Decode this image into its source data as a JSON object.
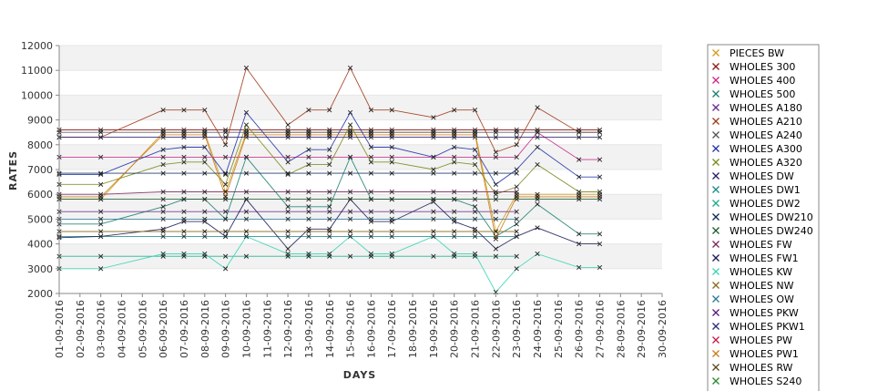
{
  "chart_data": {
    "type": "line",
    "xlabel": "DAYS",
    "ylabel": "RATES",
    "ylim": [
      2000,
      12000
    ],
    "yticks": [
      2000,
      3000,
      4000,
      5000,
      6000,
      7000,
      8000,
      9000,
      10000,
      11000,
      12000
    ],
    "grid": "alternating horizontal bands",
    "legend_position": "right",
    "x": [
      "01-09-2016",
      "02-09-2016",
      "03-09-2016",
      "04-09-2016",
      "05-09-2016",
      "06-09-2016",
      "07-09-2016",
      "08-09-2016",
      "09-09-2016",
      "10-09-2016",
      "11-09-2016",
      "12-09-2016",
      "13-09-2016",
      "14-09-2016",
      "15-09-2016",
      "16-09-2016",
      "17-09-2016",
      "18-09-2016",
      "19-09-2016",
      "20-09-2016",
      "21-09-2016",
      "22-09-2016",
      "23-09-2016",
      "24-09-2016",
      "25-09-2016",
      "26-09-2016",
      "27-09-2016",
      "28-09-2016",
      "29-09-2016",
      "30-09-2016"
    ],
    "series": [
      {
        "name": "PIECES BW",
        "color": "#d49a1c",
        "values": [
          5800,
          null,
          5800,
          null,
          null,
          8500,
          8500,
          8500,
          6100,
          8500,
          null,
          8500,
          8500,
          8500,
          8500,
          8500,
          8500,
          null,
          8500,
          8500,
          8500,
          4500,
          6000,
          6000,
          null,
          6000,
          6000,
          null,
          null,
          null
        ]
      },
      {
        "name": "WHOLES 300",
        "color": "#8b1a1a",
        "values": [
          8600,
          null,
          8600,
          null,
          null,
          8600,
          8600,
          8600,
          8600,
          8600,
          null,
          8600,
          8600,
          8600,
          8600,
          8600,
          8600,
          null,
          8600,
          8600,
          8600,
          8600,
          8600,
          8600,
          null,
          8600,
          8600,
          null,
          null,
          null
        ]
      },
      {
        "name": "WHOLES 400",
        "color": "#c8288a",
        "values": [
          7500,
          null,
          7500,
          null,
          null,
          7500,
          7500,
          7500,
          7500,
          7500,
          null,
          7500,
          7500,
          7500,
          7500,
          7500,
          7500,
          null,
          7500,
          7500,
          7500,
          7500,
          7500,
          8500,
          null,
          7400,
          7400,
          null,
          null,
          null
        ]
      },
      {
        "name": "WHOLES 500",
        "color": "#1a7f6e",
        "values": [
          4800,
          null,
          4800,
          null,
          null,
          5500,
          5800,
          5800,
          5000,
          7500,
          null,
          5500,
          5500,
          5500,
          7500,
          5800,
          5800,
          null,
          5800,
          5800,
          5500,
          4300,
          4800,
          5600,
          null,
          4400,
          4400,
          null,
          null,
          null
        ]
      },
      {
        "name": "WHOLES A180",
        "color": "#6b2a8f",
        "values": [
          5300,
          null,
          5300,
          null,
          null,
          5300,
          5300,
          5300,
          5300,
          5300,
          null,
          5300,
          5300,
          5300,
          5300,
          5300,
          5300,
          null,
          5300,
          5300,
          5300,
          5300,
          5300,
          null,
          null,
          null,
          null,
          null,
          null,
          null
        ]
      },
      {
        "name": "WHOLES A210",
        "color": "#a03a1a",
        "values": [
          8300,
          null,
          8300,
          null,
          null,
          9400,
          9400,
          9400,
          8000,
          11100,
          null,
          8800,
          9400,
          9400,
          11100,
          9400,
          9400,
          null,
          9100,
          9400,
          9400,
          7700,
          8000,
          9500,
          null,
          8500,
          8500,
          null,
          null,
          null
        ]
      },
      {
        "name": "WHOLES A240",
        "color": "#555555",
        "values": [
          8500,
          null,
          8500,
          null,
          null,
          8500,
          8500,
          8500,
          8500,
          8500,
          null,
          8500,
          8500,
          8500,
          8500,
          8500,
          8500,
          null,
          8500,
          8500,
          8500,
          8500,
          8500,
          8500,
          null,
          8500,
          8500,
          null,
          null,
          null
        ]
      },
      {
        "name": "WHOLES A300",
        "color": "#2233aa",
        "values": [
          6800,
          null,
          6800,
          null,
          null,
          7800,
          7900,
          7900,
          6800,
          9300,
          null,
          7300,
          7800,
          7800,
          9300,
          7900,
          7900,
          null,
          7500,
          7900,
          7800,
          6400,
          7000,
          7900,
          null,
          6700,
          6700,
          null,
          null,
          null
        ]
      },
      {
        "name": "WHOLES A320",
        "color": "#7a8a1a",
        "values": [
          6400,
          null,
          6400,
          null,
          null,
          7200,
          7300,
          7300,
          6400,
          8800,
          null,
          6800,
          7200,
          7200,
          8800,
          7300,
          7300,
          null,
          7000,
          7300,
          7200,
          6000,
          6300,
          7200,
          null,
          6100,
          6100,
          null,
          null,
          null
        ]
      },
      {
        "name": "WHOLES DW",
        "color": "#2a1a6b",
        "values": [
          8300,
          null,
          8300,
          null,
          null,
          8300,
          8300,
          8300,
          8300,
          8300,
          null,
          8300,
          8300,
          8300,
          8300,
          8300,
          8300,
          null,
          8300,
          8300,
          8300,
          8300,
          8300,
          8300,
          null,
          8300,
          8300,
          null,
          null,
          null
        ]
      },
      {
        "name": "WHOLES DW1",
        "color": "#1a8a8a",
        "values": [
          4300,
          null,
          4300,
          null,
          null,
          4300,
          4300,
          4300,
          4300,
          4300,
          null,
          4300,
          4300,
          4300,
          4300,
          4300,
          4300,
          null,
          4300,
          4300,
          4300,
          4300,
          4300,
          null,
          null,
          null,
          null,
          null,
          null,
          null
        ]
      },
      {
        "name": "WHOLES DW2",
        "color": "#1aaa8a",
        "values": [
          3500,
          null,
          3500,
          null,
          null,
          3500,
          3500,
          3500,
          3500,
          3500,
          null,
          3500,
          3500,
          3500,
          3500,
          3500,
          3500,
          null,
          3500,
          3500,
          3500,
          3500,
          3500,
          null,
          null,
          null,
          null,
          null,
          null,
          null
        ]
      },
      {
        "name": "WHOLES DW210",
        "color": "#0a2a5a",
        "values": [
          6850,
          null,
          6850,
          null,
          null,
          6850,
          6850,
          6850,
          6850,
          6850,
          null,
          6850,
          6850,
          6850,
          6850,
          6850,
          6850,
          null,
          6850,
          6850,
          6850,
          6850,
          6850,
          null,
          null,
          null,
          null,
          null,
          null,
          null
        ]
      },
      {
        "name": "WHOLES DW240",
        "color": "#1a5a2a",
        "values": [
          5800,
          null,
          5800,
          null,
          null,
          5800,
          5800,
          5800,
          5800,
          5800,
          null,
          5800,
          5800,
          5800,
          5800,
          5800,
          5800,
          null,
          5800,
          5800,
          5800,
          5800,
          5800,
          5800,
          null,
          5800,
          5800,
          null,
          null,
          null
        ]
      },
      {
        "name": "WHOLES FW",
        "color": "#7a2a5a",
        "values": [
          6000,
          null,
          6000,
          null,
          null,
          6100,
          6100,
          6100,
          6100,
          6100,
          null,
          6100,
          6100,
          6100,
          6100,
          6100,
          6100,
          null,
          6100,
          6100,
          6100,
          6100,
          6100,
          null,
          null,
          null,
          null,
          null,
          null,
          null
        ]
      },
      {
        "name": "WHOLES FW1",
        "color": "#1a1a5a",
        "values": [
          4250,
          null,
          4300,
          null,
          null,
          4600,
          4900,
          4900,
          4300,
          5800,
          null,
          3800,
          4600,
          4600,
          5800,
          4900,
          4900,
          null,
          5700,
          4900,
          4600,
          3800,
          4300,
          4650,
          null,
          4000,
          4000,
          null,
          null,
          null
        ]
      },
      {
        "name": "WHOLES KW",
        "color": "#3ad4b4",
        "values": [
          3000,
          null,
          3000,
          null,
          null,
          3600,
          3600,
          3600,
          3000,
          4300,
          null,
          3600,
          3600,
          3600,
          4300,
          3600,
          3600,
          null,
          4300,
          3600,
          3600,
          2050,
          3000,
          3600,
          null,
          3050,
          3050,
          null,
          null,
          null
        ]
      },
      {
        "name": "WHOLES NW",
        "color": "#8a6a1a",
        "values": [
          4500,
          null,
          4500,
          null,
          null,
          4500,
          4500,
          4500,
          4500,
          4500,
          null,
          4500,
          4500,
          4500,
          4500,
          4500,
          4500,
          null,
          4500,
          4500,
          4500,
          4500,
          4500,
          null,
          null,
          null,
          null,
          null,
          null,
          null
        ]
      },
      {
        "name": "WHOLES OW",
        "color": "#2a7a9a",
        "values": [
          5000,
          null,
          5000,
          null,
          null,
          5000,
          5000,
          5000,
          5000,
          5000,
          null,
          5000,
          5000,
          5000,
          5000,
          5000,
          5000,
          null,
          5000,
          5000,
          5000,
          5000,
          5000,
          null,
          null,
          null,
          null,
          null,
          null,
          null
        ]
      },
      {
        "name": "WHOLES PKW",
        "color": "#5a1a7a",
        "values": [
          null,
          null,
          null,
          null,
          null,
          null,
          null,
          null,
          null,
          null,
          null,
          null,
          null,
          null,
          null,
          null,
          null,
          null,
          null,
          null,
          null,
          null,
          null,
          null,
          null,
          null,
          null,
          null,
          null,
          null
        ]
      },
      {
        "name": "WHOLES PKW1",
        "color": "#2a2a7a",
        "values": [
          null,
          null,
          null,
          null,
          null,
          null,
          null,
          null,
          null,
          null,
          null,
          null,
          null,
          null,
          null,
          null,
          null,
          null,
          null,
          null,
          null,
          null,
          null,
          null,
          null,
          null,
          null,
          null,
          null,
          null
        ]
      },
      {
        "name": "WHOLES PW",
        "color": "#c81a4a",
        "values": [
          null,
          null,
          null,
          null,
          null,
          null,
          null,
          null,
          null,
          null,
          null,
          null,
          null,
          null,
          null,
          null,
          null,
          null,
          null,
          null,
          null,
          null,
          null,
          null,
          null,
          null,
          null,
          null,
          null,
          null
        ]
      },
      {
        "name": "WHOLES PW1",
        "color": "#c87a1a",
        "values": [
          5900,
          null,
          5900,
          null,
          null,
          8400,
          8400,
          8400,
          5900,
          8400,
          null,
          8400,
          8400,
          8400,
          8400,
          8400,
          8400,
          null,
          8400,
          8400,
          8400,
          4200,
          5900,
          5900,
          null,
          5900,
          5900,
          null,
          null,
          null
        ]
      },
      {
        "name": "WHOLES RW",
        "color": "#5a4a1a",
        "values": [
          null,
          null,
          null,
          null,
          null,
          null,
          null,
          null,
          null,
          null,
          null,
          null,
          null,
          null,
          null,
          null,
          null,
          null,
          null,
          null,
          null,
          null,
          null,
          null,
          null,
          null,
          null,
          null,
          null,
          null
        ]
      },
      {
        "name": "WHOLES S240",
        "color": "#2a8a2a",
        "values": [
          null,
          null,
          null,
          null,
          null,
          null,
          null,
          null,
          null,
          null,
          null,
          null,
          null,
          null,
          null,
          null,
          null,
          null,
          null,
          null,
          null,
          null,
          null,
          null,
          null,
          null,
          null,
          null,
          null,
          null
        ]
      }
    ]
  }
}
